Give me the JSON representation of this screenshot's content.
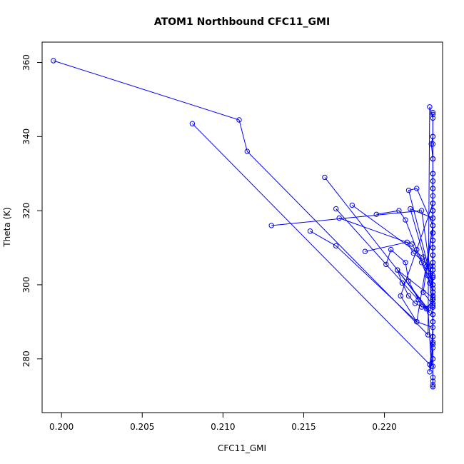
{
  "chart_data": {
    "type": "line",
    "title": "ATOM1 Northbound CFC11_GMI",
    "xlabel": "CFC11_GMI",
    "ylabel": "Theta (K)",
    "xlim": [
      0.1988,
      0.2236
    ],
    "ylim": [
      265.5,
      365.5
    ],
    "x_ticks": [
      0.2,
      0.205,
      0.21,
      0.215,
      0.22
    ],
    "x_tick_labels": [
      "0.200",
      "0.205",
      "0.210",
      "0.215",
      "0.220"
    ],
    "y_ticks": [
      280,
      300,
      320,
      340,
      360
    ],
    "y_tick_labels": [
      "280",
      "300",
      "320",
      "340",
      "360"
    ],
    "grid": false,
    "legend": "none",
    "marker": "open-circle",
    "color": "#0000ff",
    "series": [
      {
        "x": [
          0.1995,
          0.211,
          0.2115,
          0.2227,
          0.2228,
          0.223,
          0.223,
          0.2229,
          0.223,
          0.223,
          0.223,
          0.223,
          0.221,
          0.222,
          0.223,
          0.2228,
          0.223,
          0.223,
          0.223,
          0.223,
          0.223,
          0.223,
          0.223,
          0.223,
          0.223,
          0.223,
          0.223,
          0.223,
          0.223,
          0.223,
          0.223,
          0.223
        ],
        "y": [
          360.5,
          344.5,
          336.0,
          286.5,
          348.0,
          345.0,
          340.0,
          338.0,
          334.0,
          330.0,
          326.0,
          322.0,
          297.0,
          290.0,
          288.5,
          276.5,
          280.0,
          284.0,
          290.0,
          294.5,
          298.0,
          302.0,
          306.0,
          310.0,
          314.0,
          318.0,
          322.0,
          326.0,
          330.0,
          334.0,
          338.0,
          346.0
        ]
      },
      {
        "x": [
          0.2081,
          0.2228,
          0.223,
          0.223,
          0.2215,
          0.222,
          0.223,
          0.223,
          0.223,
          0.223,
          0.223,
          0.223,
          0.223,
          0.223,
          0.223,
          0.223
        ],
        "y": [
          343.5,
          278.5,
          283.0,
          300.0,
          325.5,
          326.0,
          316.0,
          310.0,
          304.0,
          298.0,
          292.0,
          286.0,
          280.0,
          275.0,
          273.0,
          272.5
        ]
      },
      {
        "x": [
          0.213,
          0.2223,
          0.223,
          0.2216,
          0.223,
          0.223,
          0.223,
          0.223,
          0.223,
          0.223,
          0.223,
          0.223,
          0.223,
          0.223
        ],
        "y": [
          316.0,
          320.0,
          299.0,
          320.5,
          318.0,
          314.0,
          308.0,
          302.0,
          296.0,
          290.0,
          284.0,
          278.0,
          274.0,
          272.5
        ]
      },
      {
        "x": [
          0.2154,
          0.217,
          0.222,
          0.223,
          0.2224,
          0.223,
          0.223,
          0.223,
          0.223,
          0.223,
          0.223
        ],
        "y": [
          314.5,
          310.5,
          290.0,
          316.0,
          298.0,
          294.5,
          297.0,
          300.0,
          305.0,
          310.0,
          314.0
        ]
      },
      {
        "x": [
          0.2163,
          0.2227,
          0.2229,
          0.223,
          0.223,
          0.223,
          0.223,
          0.223,
          0.223,
          0.223,
          0.223,
          0.223,
          0.223
        ],
        "y": [
          329.0,
          293.5,
          278.0,
          284.5,
          292.0,
          298.0,
          304.0,
          310.0,
          318.0,
          326.0,
          334.0,
          340.0,
          346.5
        ]
      },
      {
        "x": [
          0.217,
          0.2228,
          0.2208,
          0.223,
          0.223,
          0.223,
          0.223,
          0.223,
          0.223,
          0.223,
          0.223
        ],
        "y": [
          320.5,
          292.5,
          304.0,
          296.5,
          300.0,
          304.0,
          308.0,
          312.0,
          316.0,
          320.0,
          324.0
        ]
      },
      {
        "x": [
          0.2172,
          0.2217,
          0.2223,
          0.2228,
          0.223,
          0.223,
          0.223,
          0.223,
          0.223,
          0.223,
          0.223,
          0.223,
          0.223
        ],
        "y": [
          318.0,
          311.0,
          306.0,
          300.5,
          295.0,
          290.0,
          286.0,
          290.0,
          298.0,
          306.0,
          314.0,
          322.0,
          330.0
        ]
      },
      {
        "x": [
          0.218,
          0.2224,
          0.2226,
          0.223,
          0.223,
          0.223,
          0.223,
          0.223,
          0.223,
          0.223,
          0.223,
          0.223
        ],
        "y": [
          321.5,
          307.5,
          305.0,
          302.5,
          298.0,
          294.0,
          292.0,
          296.0,
          304.0,
          312.0,
          320.0,
          328.0
        ]
      },
      {
        "x": [
          0.2188,
          0.2214,
          0.2218,
          0.2228,
          0.223,
          0.223,
          0.223,
          0.223,
          0.223,
          0.223,
          0.223,
          0.223
        ],
        "y": [
          309.0,
          311.5,
          308.5,
          305.0,
          300.0,
          296.0,
          294.0,
          298.0,
          306.0,
          314.0,
          322.0,
          330.0
        ]
      },
      {
        "x": [
          0.2195,
          0.2209,
          0.2213,
          0.222,
          0.2227,
          0.223,
          0.223,
          0.223,
          0.223,
          0.223,
          0.223,
          0.223
        ],
        "y": [
          319.0,
          320.0,
          317.5,
          309.5,
          302.5,
          298.0,
          294.0,
          296.0,
          304.0,
          312.0,
          320.0,
          328.0
        ]
      },
      {
        "x": [
          0.2201,
          0.2204,
          0.2213,
          0.2215,
          0.2221,
          0.2223,
          0.223,
          0.223,
          0.223,
          0.223,
          0.223,
          0.223
        ],
        "y": [
          305.5,
          309.5,
          306.0,
          301.0,
          296.0,
          294.0,
          294.5,
          297.0,
          302.0,
          308.0,
          314.0,
          320.0
        ]
      },
      {
        "x": [
          0.2208,
          0.2211,
          0.2215,
          0.2219,
          0.2226,
          0.223,
          0.223,
          0.223,
          0.223,
          0.223,
          0.223,
          0.223
        ],
        "y": [
          304.0,
          300.5,
          297.0,
          295.0,
          293.5,
          296.0,
          300.0,
          304.0,
          308.0,
          312.0,
          316.0,
          320.0
        ]
      }
    ]
  }
}
